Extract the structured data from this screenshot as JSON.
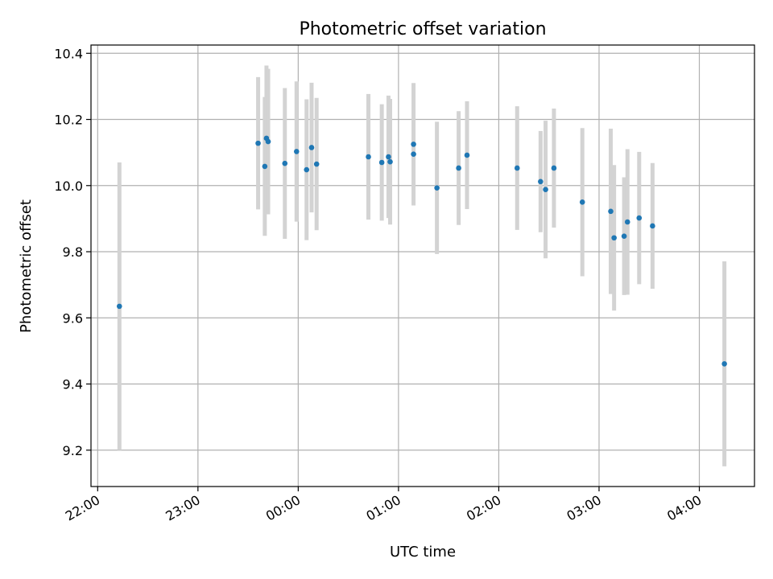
{
  "chart_data": {
    "type": "scatter",
    "title": "Photometric offset variation",
    "xlabel": "UTC time",
    "ylabel": "Photometric offset",
    "x_tick_labels": [
      "22:00",
      "23:00",
      "00:00",
      "01:00",
      "02:00",
      "03:00",
      "04:00"
    ],
    "y_ticks": [
      9.2,
      9.4,
      9.6,
      9.8,
      10.0,
      10.2,
      10.4
    ],
    "y_tick_labels": [
      "9.2",
      "9.4",
      "9.6",
      "9.8",
      "10.0",
      "10.2",
      "10.4"
    ],
    "xlim": [
      "21:56",
      "04:33"
    ],
    "ylim": [
      9.09,
      10.425
    ],
    "grid": true,
    "colors": {
      "points": "#1f77b4",
      "errorbars": "#d3d3d3",
      "grid": "#b0b0b0"
    },
    "points": [
      {
        "x": "22:13",
        "y": 9.635,
        "err": 0.435
      },
      {
        "x": "23:36",
        "y": 10.128,
        "err": 0.2
      },
      {
        "x": "23:40",
        "y": 10.058,
        "err": 0.21
      },
      {
        "x": "23:41",
        "y": 10.143,
        "err": 0.22
      },
      {
        "x": "23:42",
        "y": 10.133,
        "err": 0.22
      },
      {
        "x": "23:52",
        "y": 10.067,
        "err": 0.228
      },
      {
        "x": "23:59",
        "y": 10.103,
        "err": 0.212
      },
      {
        "x": "00:05",
        "y": 10.048,
        "err": 0.213
      },
      {
        "x": "00:08",
        "y": 10.115,
        "err": 0.196
      },
      {
        "x": "00:11",
        "y": 10.065,
        "err": 0.2
      },
      {
        "x": "00:42",
        "y": 10.087,
        "err": 0.19
      },
      {
        "x": "00:50",
        "y": 10.07,
        "err": 0.176
      },
      {
        "x": "00:54",
        "y": 10.087,
        "err": 0.185
      },
      {
        "x": "00:55",
        "y": 10.072,
        "err": 0.19
      },
      {
        "x": "01:09",
        "y": 10.125,
        "err": 0.185
      },
      {
        "x": "01:09",
        "y": 10.095,
        "err": 0.0
      },
      {
        "x": "01:23",
        "y": 9.993,
        "err": 0.2
      },
      {
        "x": "01:36",
        "y": 10.053,
        "err": 0.172
      },
      {
        "x": "01:41",
        "y": 10.092,
        "err": 0.163
      },
      {
        "x": "02:11",
        "y": 10.053,
        "err": 0.187
      },
      {
        "x": "02:25",
        "y": 10.012,
        "err": 0.153
      },
      {
        "x": "02:28",
        "y": 9.988,
        "err": 0.208
      },
      {
        "x": "02:33",
        "y": 10.053,
        "err": 0.18
      },
      {
        "x": "02:50",
        "y": 9.95,
        "err": 0.224
      },
      {
        "x": "03:07",
        "y": 9.922,
        "err": 0.25
      },
      {
        "x": "03:09",
        "y": 9.842,
        "err": 0.22
      },
      {
        "x": "03:15",
        "y": 9.847,
        "err": 0.178
      },
      {
        "x": "03:17",
        "y": 9.89,
        "err": 0.22
      },
      {
        "x": "03:24",
        "y": 9.902,
        "err": 0.2
      },
      {
        "x": "03:32",
        "y": 9.878,
        "err": 0.19
      },
      {
        "x": "04:15",
        "y": 9.461,
        "err": 0.31
      }
    ]
  }
}
